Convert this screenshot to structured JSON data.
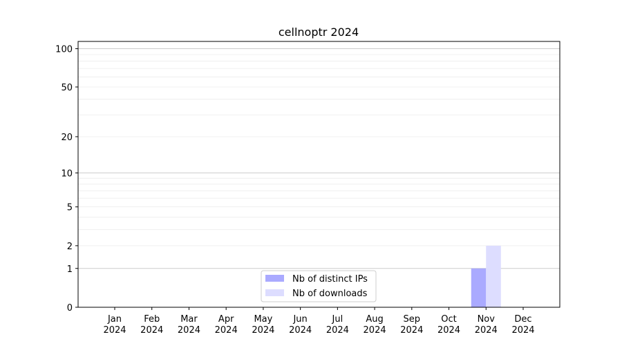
{
  "chart_data": {
    "type": "bar",
    "title": "cellnoptr 2024",
    "xlabel": "",
    "ylabel": "",
    "yscale": "symlog (log10(1+y))",
    "ylim": [
      0,
      114
    ],
    "yticks": [
      0,
      1,
      2,
      5,
      10,
      20,
      50,
      100
    ],
    "grid": true,
    "legend_position": "lower-center",
    "categories": [
      "Jan\n2024",
      "Feb\n2024",
      "Mar\n2024",
      "Apr\n2024",
      "May\n2024",
      "Jun\n2024",
      "Jul\n2024",
      "Aug\n2024",
      "Sep\n2024",
      "Oct\n2024",
      "Nov\n2024",
      "Dec\n2024"
    ],
    "series": [
      {
        "name": "Nb of distinct IPs",
        "color": "#aaaaff",
        "values": [
          0,
          0,
          0,
          0,
          0,
          0,
          0,
          0,
          0,
          0,
          1,
          0
        ]
      },
      {
        "name": "Nb of downloads",
        "color": "#ddddff",
        "values": [
          0,
          0,
          0,
          0,
          0,
          0,
          0,
          0,
          0,
          0,
          2,
          0
        ]
      }
    ]
  }
}
